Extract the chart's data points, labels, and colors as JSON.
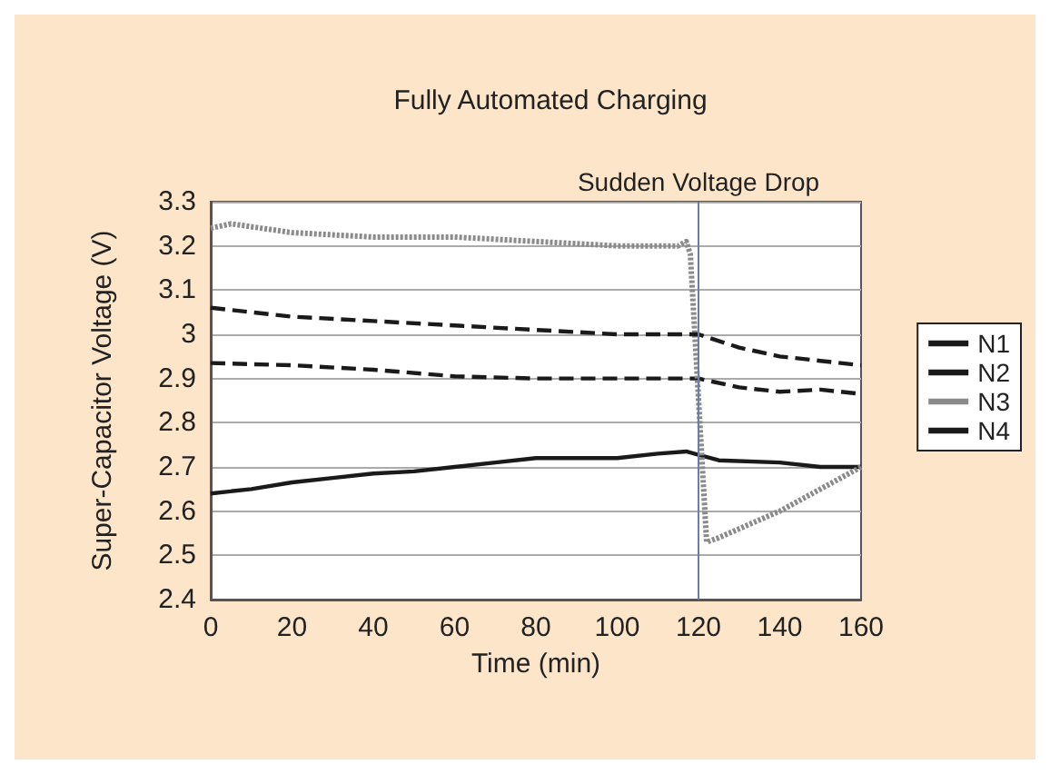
{
  "chart_data": {
    "type": "line",
    "title": "Fully Automated Charging",
    "xlabel": "Time (min)",
    "ylabel": "Super-Capacitor Voltage (V)",
    "xlim": [
      0,
      160
    ],
    "xticks": [
      0,
      20,
      40,
      60,
      80,
      100,
      120,
      140,
      160
    ],
    "ylim": [
      2.4,
      3.3
    ],
    "yticks": [
      2.4,
      2.5,
      2.6,
      2.7,
      2.8,
      2.9,
      {
        "value": 3,
        "label": "3"
      },
      3.1,
      3.2,
      3.3
    ],
    "grid": "y",
    "legend": "right",
    "marker": "none",
    "ref_lines": [
      {
        "axis": "x",
        "value": 120,
        "label": "Sudden Voltage Drop",
        "color": "#6a7fa8"
      }
    ],
    "series": [
      {
        "name": "N1",
        "color": "#1a1a1a",
        "line_style": "solid",
        "x": [
          0,
          10,
          20,
          30,
          40,
          50,
          60,
          70,
          80,
          90,
          100,
          110,
          117,
          125,
          140,
          150,
          160
        ],
        "values": [
          2.64,
          2.65,
          2.665,
          2.675,
          2.685,
          2.69,
          2.7,
          2.71,
          2.72,
          2.72,
          2.72,
          2.73,
          2.735,
          2.715,
          2.71,
          2.7,
          2.7
        ]
      },
      {
        "name": "N2",
        "color": "#1a1a1a",
        "line_style": "dashed",
        "x": [
          0,
          20,
          40,
          60,
          80,
          100,
          120,
          130,
          140,
          150,
          160
        ],
        "values": [
          2.935,
          2.93,
          2.92,
          2.905,
          2.9,
          2.9,
          2.9,
          2.88,
          2.87,
          2.875,
          2.865
        ]
      },
      {
        "name": "N3",
        "color": "#8a8a8a",
        "line_style": "dotted",
        "x": [
          0,
          5,
          20,
          40,
          60,
          80,
          100,
          115,
          117,
          118,
          122,
          125,
          140,
          160
        ],
        "values": [
          3.24,
          3.25,
          3.23,
          3.22,
          3.22,
          3.21,
          3.2,
          3.2,
          3.21,
          3.18,
          2.53,
          2.54,
          2.6,
          2.7
        ]
      },
      {
        "name": "N4",
        "color": "#1a1a1a",
        "line_style": "dashed",
        "x": [
          0,
          10,
          20,
          40,
          60,
          80,
          100,
          120,
          130,
          140,
          150,
          160
        ],
        "values": [
          3.06,
          3.05,
          3.04,
          3.03,
          3.02,
          3.01,
          3.0,
          3.0,
          2.97,
          2.95,
          2.94,
          2.93
        ]
      }
    ]
  }
}
